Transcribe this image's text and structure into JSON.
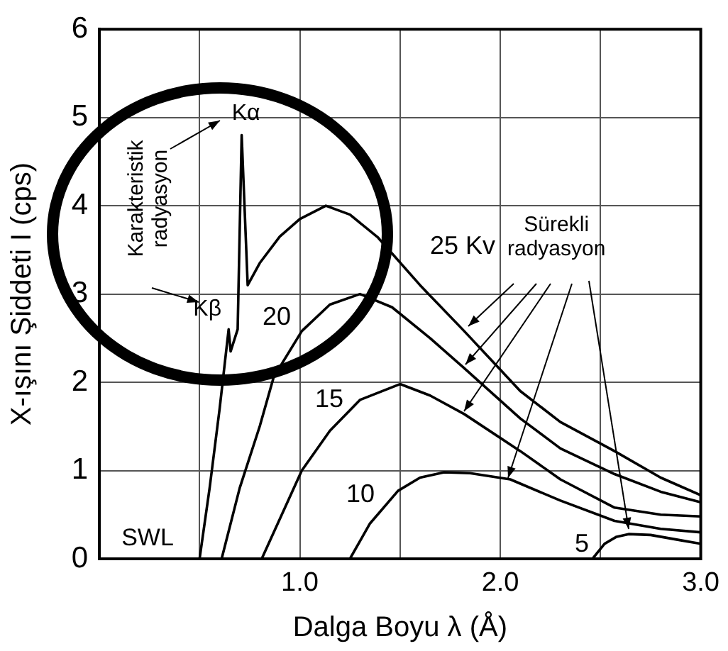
{
  "chart_data": {
    "type": "line",
    "xlabel": "Dalga Boyu λ (Å)",
    "ylabel": "X-ışını Şiddeti I (cps)",
    "xlim": [
      0,
      3
    ],
    "ylim": [
      0,
      6
    ],
    "xticks": [
      {
        "value": 0,
        "label": null
      },
      {
        "value": 0.5,
        "label": null
      },
      {
        "value": 1,
        "label": "1.0"
      },
      {
        "value": 1.5,
        "label": null
      },
      {
        "value": 2,
        "label": "2.0"
      },
      {
        "value": 2.5,
        "label": null
      },
      {
        "value": 3,
        "label": "3.0"
      }
    ],
    "yticks": [
      0,
      1,
      2,
      3,
      4,
      5,
      6
    ],
    "grid": true,
    "legend": false,
    "marker": "none",
    "line_style": "solid",
    "series": [
      {
        "name": "25 Kv",
        "color": "#000000",
        "x": [
          0.5,
          0.55,
          0.6,
          0.63,
          0.645,
          0.655,
          0.69,
          0.71,
          0.74,
          0.8,
          0.9,
          1.0,
          1.13,
          1.25,
          1.39,
          1.6,
          1.82,
          2.1,
          2.3,
          2.57,
          2.8,
          3.0
        ],
        "values": [
          0,
          0.8,
          1.7,
          2.3,
          2.6,
          2.35,
          2.6,
          4.8,
          3.1,
          3.35,
          3.65,
          3.85,
          4.0,
          3.9,
          3.64,
          3.1,
          2.58,
          1.9,
          1.55,
          1.22,
          0.92,
          0.72
        ]
      },
      {
        "name": "20",
        "color": "#000000",
        "x": [
          0.61,
          0.7,
          0.8,
          0.87,
          1.01,
          1.15,
          1.3,
          1.46,
          1.65,
          1.82,
          2.1,
          2.3,
          2.57,
          2.8,
          3.0
        ],
        "values": [
          0,
          0.8,
          1.5,
          2.06,
          2.58,
          2.88,
          3.0,
          2.85,
          2.5,
          2.16,
          1.59,
          1.25,
          0.96,
          0.76,
          0.64
        ]
      },
      {
        "name": "15",
        "color": "#000000",
        "x": [
          0.81,
          0.9,
          1.01,
          1.15,
          1.3,
          1.5,
          1.65,
          1.82,
          2.1,
          2.3,
          2.57,
          2.8,
          3.0
        ],
        "values": [
          0,
          0.45,
          1.0,
          1.45,
          1.8,
          1.98,
          1.85,
          1.64,
          1.22,
          0.9,
          0.58,
          0.5,
          0.48
        ]
      },
      {
        "name": "10",
        "color": "#000000",
        "x": [
          1.25,
          1.35,
          1.49,
          1.6,
          1.72,
          1.85,
          2.05,
          2.3,
          2.57,
          2.8,
          3.0
        ],
        "values": [
          0,
          0.4,
          0.77,
          0.92,
          0.98,
          0.97,
          0.9,
          0.66,
          0.43,
          0.34,
          0.3
        ]
      },
      {
        "name": "5",
        "color": "#000000",
        "x": [
          2.46,
          2.52,
          2.58,
          2.64,
          2.75,
          2.9,
          3.0
        ],
        "values": [
          0,
          0.17,
          0.25,
          0.28,
          0.27,
          0.21,
          0.17
        ]
      }
    ],
    "annotations": [
      {
        "text": "Kα",
        "x": 0.71,
        "y": 4.8
      },
      {
        "text": "Kβ",
        "x": 0.645,
        "y": 2.6
      },
      "SWL",
      "Karakteristik radyasyon",
      {
        "text": "Sürekli radyasyon",
        "x": 1.82,
        "y": 2.58
      }
    ]
  }
}
